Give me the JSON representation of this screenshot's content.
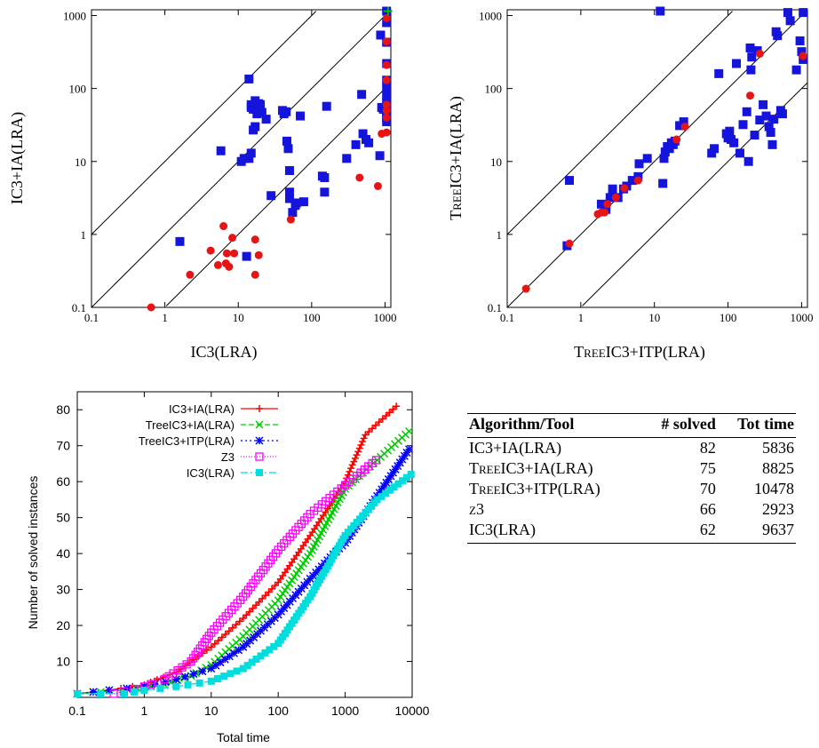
{
  "chart_data": [
    {
      "type": "scatter",
      "xlabel": "IC3(LRA)",
      "ylabel": "IC3+IA(LRA)",
      "scale": "log",
      "xlim": [
        0.1,
        1200
      ],
      "ylim": [
        0.1,
        1200
      ],
      "x_ticks": [
        "0.1",
        "1",
        "10",
        "100",
        "1000"
      ],
      "y_ticks": [
        "0.1",
        "1",
        "10",
        "100",
        "1000"
      ],
      "diagonals": [
        0.1,
        1,
        10
      ],
      "colors": {
        "square": "#1414dc",
        "circle": "#e61414"
      },
      "squares": [
        [
          1.6,
          0.8
        ],
        [
          5.8,
          14
        ],
        [
          11,
          10
        ],
        [
          12,
          11
        ],
        [
          13,
          0.5
        ],
        [
          14,
          135
        ],
        [
          15,
          60
        ],
        [
          15,
          55
        ],
        [
          16,
          52
        ],
        [
          17,
          68
        ],
        [
          18,
          45
        ],
        [
          19,
          62
        ],
        [
          20,
          60
        ],
        [
          16,
          27
        ],
        [
          17,
          30
        ],
        [
          15,
          13
        ],
        [
          14,
          11
        ],
        [
          21,
          47
        ],
        [
          24,
          38
        ],
        [
          28,
          3.4
        ],
        [
          40,
          50
        ],
        [
          42,
          45
        ],
        [
          45,
          48
        ],
        [
          46,
          19
        ],
        [
          48,
          15
        ],
        [
          50,
          7.5
        ],
        [
          50,
          3.8
        ],
        [
          50,
          3.1
        ],
        [
          55,
          2
        ],
        [
          60,
          2.5
        ],
        [
          62,
          2.7
        ],
        [
          70,
          42
        ],
        [
          78,
          2.8
        ],
        [
          140,
          6.3
        ],
        [
          150,
          6
        ],
        [
          150,
          3.8
        ],
        [
          160,
          57
        ],
        [
          300,
          11
        ],
        [
          400,
          17
        ],
        [
          480,
          83
        ],
        [
          500,
          24
        ],
        [
          550,
          20
        ],
        [
          600,
          18
        ],
        [
          850,
          12
        ],
        [
          870,
          540
        ],
        [
          900,
          55
        ],
        [
          950,
          52
        ],
        [
          1050,
          1150
        ],
        [
          1050,
          800
        ],
        [
          1050,
          430
        ],
        [
          1050,
          220
        ],
        [
          1050,
          130
        ],
        [
          1050,
          100
        ],
        [
          1050,
          80
        ],
        [
          1050,
          65
        ],
        [
          1050,
          57
        ],
        [
          1050,
          50
        ],
        [
          1050,
          45
        ],
        [
          1050,
          40
        ],
        [
          1050,
          35
        ]
      ],
      "circles": [
        [
          0.65,
          0.1
        ],
        [
          2.2,
          0.28
        ],
        [
          4.2,
          0.6
        ],
        [
          5.3,
          0.38
        ],
        [
          6.3,
          1.3
        ],
        [
          6.8,
          0.4
        ],
        [
          7,
          0.55
        ],
        [
          7.5,
          0.36
        ],
        [
          8.3,
          0.9
        ],
        [
          8.8,
          0.55
        ],
        [
          17,
          0.28
        ],
        [
          17,
          0.85
        ],
        [
          19,
          0.52
        ],
        [
          52,
          1.6
        ],
        [
          450,
          6
        ],
        [
          800,
          4.6
        ],
        [
          900,
          24
        ],
        [
          1050,
          920
        ],
        [
          1050,
          440
        ],
        [
          1050,
          210
        ],
        [
          1050,
          130
        ],
        [
          1050,
          60
        ],
        [
          1050,
          50
        ],
        [
          1050,
          40
        ],
        [
          1050,
          25
        ]
      ],
      "green_crosses": [
        [
          1100,
          1150
        ]
      ]
    },
    {
      "type": "scatter",
      "xlabel": "TreeIC3+ITP(LRA)",
      "ylabel": "TreeIC3+IA(LRA)",
      "scale": "log",
      "xlim": [
        0.1,
        1200
      ],
      "ylim": [
        0.1,
        1200
      ],
      "x_ticks": [
        "0.1",
        "1",
        "10",
        "100",
        "1000"
      ],
      "y_ticks": [
        "0.1",
        "1",
        "10",
        "100",
        "1000"
      ],
      "diagonals": [
        0.1,
        1,
        10
      ],
      "colors": {
        "square": "#1414dc",
        "circle": "#e61414"
      },
      "squares": [
        [
          0.65,
          0.7
        ],
        [
          0.7,
          5.5
        ],
        [
          1.9,
          2.6
        ],
        [
          2.2,
          2.2
        ],
        [
          2.5,
          3.2
        ],
        [
          2.7,
          4.2
        ],
        [
          3.2,
          3.2
        ],
        [
          3.8,
          4.2
        ],
        [
          4.2,
          4.6
        ],
        [
          5,
          5.5
        ],
        [
          6,
          6.2
        ],
        [
          6.2,
          9.3
        ],
        [
          8,
          11
        ],
        [
          12,
          1150
        ],
        [
          13,
          5
        ],
        [
          13.5,
          11
        ],
        [
          14,
          13.5
        ],
        [
          15,
          16
        ],
        [
          16,
          15
        ],
        [
          17,
          18
        ],
        [
          18,
          17
        ],
        [
          19,
          19
        ],
        [
          22,
          31
        ],
        [
          25,
          35
        ],
        [
          60,
          13
        ],
        [
          65,
          15
        ],
        [
          75,
          160
        ],
        [
          95,
          24
        ],
        [
          100,
          21
        ],
        [
          105,
          26
        ],
        [
          110,
          20
        ],
        [
          120,
          18
        ],
        [
          130,
          220
        ],
        [
          145,
          13
        ],
        [
          160,
          32
        ],
        [
          180,
          48
        ],
        [
          190,
          10
        ],
        [
          200,
          360
        ],
        [
          205,
          180
        ],
        [
          210,
          270
        ],
        [
          230,
          23
        ],
        [
          250,
          330
        ],
        [
          270,
          37
        ],
        [
          300,
          60
        ],
        [
          330,
          42
        ],
        [
          360,
          30
        ],
        [
          380,
          25
        ],
        [
          400,
          17
        ],
        [
          420,
          38
        ],
        [
          450,
          600
        ],
        [
          470,
          530
        ],
        [
          520,
          50
        ],
        [
          550,
          45
        ],
        [
          650,
          1100
        ],
        [
          700,
          850
        ],
        [
          850,
          180
        ],
        [
          950,
          450
        ],
        [
          1000,
          320
        ],
        [
          1050,
          250
        ],
        [
          1050,
          1100
        ]
      ],
      "circles": [
        [
          0.18,
          0.18
        ],
        [
          0.7,
          0.75
        ],
        [
          1.7,
          1.9
        ],
        [
          1.9,
          2
        ],
        [
          2.1,
          2
        ],
        [
          2.3,
          2.6
        ],
        [
          3,
          3.2
        ],
        [
          3.9,
          4.3
        ],
        [
          6,
          5.5
        ],
        [
          20,
          20
        ],
        [
          26,
          30
        ],
        [
          200,
          80
        ],
        [
          270,
          300
        ],
        [
          1050,
          280
        ]
      ]
    },
    {
      "type": "line",
      "xlabel": "Total time",
      "ylabel": "Number of solved instances",
      "xscale": "log",
      "xlim": [
        0.1,
        10000
      ],
      "ylim": [
        0,
        85
      ],
      "x_ticks": [
        "0.1",
        "1",
        "10",
        "100",
        "1000",
        "10000"
      ],
      "y_ticks": [
        "10",
        "20",
        "30",
        "40",
        "50",
        "60",
        "70",
        "80"
      ],
      "series": [
        {
          "name": "IC3+IA(LRA)",
          "color": "#ff0000",
          "marker": "plus",
          "dash": "",
          "points": [
            [
              0.1,
              1
            ],
            [
              0.3,
              2
            ],
            [
              1,
              3.5
            ],
            [
              3,
              7
            ],
            [
              10,
              14
            ],
            [
              30,
              22
            ],
            [
              100,
              32
            ],
            [
              300,
              45
            ],
            [
              1000,
              60
            ],
            [
              2000,
              73
            ],
            [
              5800,
              81
            ]
          ]
        },
        {
          "name": "TreeIC3+IA(LRA)",
          "color": "#00cc00",
          "marker": "x",
          "dash": "6,3",
          "points": [
            [
              0.1,
              1
            ],
            [
              0.5,
              2
            ],
            [
              2,
              3.5
            ],
            [
              5,
              6
            ],
            [
              10,
              9
            ],
            [
              30,
              17
            ],
            [
              100,
              27
            ],
            [
              300,
              40
            ],
            [
              1000,
              58
            ],
            [
              3000,
              66
            ],
            [
              9000,
              74
            ]
          ]
        },
        {
          "name": "TreeIC3+ITP(LRA)",
          "color": "#0000ff",
          "marker": "star",
          "dash": "2,3",
          "points": [
            [
              0.1,
              1
            ],
            [
              0.3,
              2
            ],
            [
              1,
              3
            ],
            [
              3,
              5
            ],
            [
              10,
              8
            ],
            [
              30,
              14
            ],
            [
              100,
              23
            ],
            [
              300,
              33
            ],
            [
              600,
              39
            ],
            [
              1000,
              43
            ],
            [
              3000,
              56
            ],
            [
              9000,
              69
            ]
          ]
        },
        {
          "name": "Z3",
          "color": "#ff00ff",
          "marker": "square-open",
          "dash": "1,2",
          "points": [
            [
              0.35,
              1
            ],
            [
              1,
              3
            ],
            [
              2,
              5
            ],
            [
              5,
              10
            ],
            [
              10,
              18
            ],
            [
              30,
              28
            ],
            [
              100,
              41
            ],
            [
              300,
              51
            ],
            [
              1000,
              59
            ],
            [
              2900,
              66
            ]
          ]
        },
        {
          "name": "IC3(LRA)",
          "color": "#00dddd",
          "marker": "square-filled",
          "dash": "8,3,2,3",
          "points": [
            [
              0.1,
              1
            ],
            [
              0.5,
              1
            ],
            [
              1,
              2
            ],
            [
              3,
              3
            ],
            [
              10,
              4.5
            ],
            [
              30,
              8
            ],
            [
              100,
              15
            ],
            [
              300,
              28
            ],
            [
              1000,
              45
            ],
            [
              3000,
              55
            ],
            [
              9600,
              62
            ]
          ]
        }
      ]
    }
  ],
  "table": {
    "headers": {
      "algorithm": "Algorithm/Tool",
      "solved": "# solved",
      "time": "Tot time"
    },
    "rows": [
      {
        "tool": "IC3+IA(LRA)",
        "small_caps": false,
        "solved": "82",
        "time": "5836"
      },
      {
        "tool": "TreeIC3+IA(LRA)",
        "small_caps": true,
        "solved": "75",
        "time": "8825"
      },
      {
        "tool": "TreeIC3+ITP(LRA)",
        "small_caps": true,
        "solved": "70",
        "time": "10478"
      },
      {
        "tool": "z3",
        "small_caps": true,
        "solved": "66",
        "time": "2923"
      },
      {
        "tool": "IC3(LRA)",
        "small_caps": false,
        "solved": "62",
        "time": "9637"
      }
    ]
  }
}
